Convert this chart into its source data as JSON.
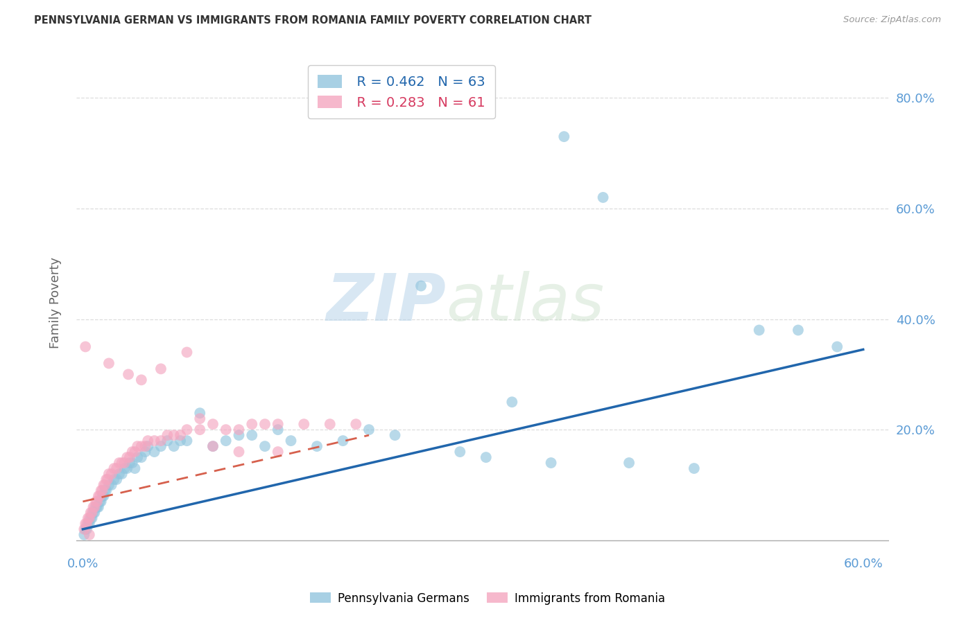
{
  "title": "PENNSYLVANIA GERMAN VS IMMIGRANTS FROM ROMANIA FAMILY POVERTY CORRELATION CHART",
  "source": "Source: ZipAtlas.com",
  "ylabel": "Family Poverty",
  "xlim": [
    -0.005,
    0.62
  ],
  "ylim": [
    -0.02,
    0.88
  ],
  "ytick_vals": [
    0.2,
    0.4,
    0.6,
    0.8
  ],
  "ytick_labels": [
    "20.0%",
    "40.0%",
    "60.0%",
    "80.0%"
  ],
  "xtick_vals": [
    0.0,
    0.6
  ],
  "xtick_labels": [
    "0.0%",
    "60.0%"
  ],
  "legend_blue_r": "R = 0.462",
  "legend_blue_n": "N = 63",
  "legend_pink_r": "R = 0.283",
  "legend_pink_n": "N = 61",
  "blue_color": "#92c5de",
  "pink_color": "#f4a6c0",
  "blue_line_color": "#2166ac",
  "pink_line_color": "#d6604d",
  "pink_line_dash": [
    6,
    4
  ],
  "watermark_zip": "ZIP",
  "watermark_atlas": "atlas",
  "grid_color": "#dddddd",
  "blue_x": [
    0.001,
    0.002,
    0.003,
    0.004,
    0.005,
    0.006,
    0.007,
    0.008,
    0.009,
    0.01,
    0.011,
    0.012,
    0.013,
    0.014,
    0.015,
    0.016,
    0.017,
    0.018,
    0.02,
    0.022,
    0.024,
    0.026,
    0.028,
    0.03,
    0.032,
    0.034,
    0.036,
    0.038,
    0.04,
    0.042,
    0.045,
    0.048,
    0.05,
    0.055,
    0.06,
    0.065,
    0.07,
    0.075,
    0.08,
    0.09,
    0.1,
    0.11,
    0.12,
    0.13,
    0.14,
    0.15,
    0.16,
    0.18,
    0.2,
    0.22,
    0.24,
    0.26,
    0.29,
    0.31,
    0.33,
    0.36,
    0.37,
    0.4,
    0.42,
    0.47,
    0.52,
    0.55,
    0.58
  ],
  "blue_y": [
    0.01,
    0.02,
    0.02,
    0.03,
    0.03,
    0.04,
    0.04,
    0.05,
    0.05,
    0.06,
    0.06,
    0.06,
    0.07,
    0.07,
    0.08,
    0.08,
    0.09,
    0.09,
    0.1,
    0.1,
    0.11,
    0.11,
    0.12,
    0.12,
    0.13,
    0.13,
    0.14,
    0.14,
    0.13,
    0.15,
    0.15,
    0.16,
    0.17,
    0.16,
    0.17,
    0.18,
    0.17,
    0.18,
    0.18,
    0.23,
    0.17,
    0.18,
    0.19,
    0.19,
    0.17,
    0.2,
    0.18,
    0.17,
    0.18,
    0.2,
    0.19,
    0.46,
    0.16,
    0.15,
    0.25,
    0.14,
    0.73,
    0.62,
    0.14,
    0.13,
    0.38,
    0.38,
    0.35
  ],
  "pink_x": [
    0.001,
    0.002,
    0.003,
    0.004,
    0.005,
    0.006,
    0.007,
    0.008,
    0.009,
    0.01,
    0.011,
    0.012,
    0.013,
    0.014,
    0.015,
    0.016,
    0.017,
    0.018,
    0.019,
    0.02,
    0.022,
    0.024,
    0.026,
    0.028,
    0.03,
    0.032,
    0.034,
    0.036,
    0.038,
    0.04,
    0.042,
    0.045,
    0.048,
    0.05,
    0.055,
    0.06,
    0.065,
    0.07,
    0.075,
    0.08,
    0.09,
    0.1,
    0.11,
    0.12,
    0.13,
    0.14,
    0.15,
    0.17,
    0.19,
    0.21,
    0.02,
    0.035,
    0.045,
    0.06,
    0.08,
    0.09,
    0.1,
    0.12,
    0.15,
    0.005,
    0.002
  ],
  "pink_y": [
    0.02,
    0.03,
    0.03,
    0.04,
    0.04,
    0.05,
    0.05,
    0.06,
    0.06,
    0.07,
    0.07,
    0.08,
    0.08,
    0.09,
    0.09,
    0.1,
    0.1,
    0.11,
    0.11,
    0.12,
    0.12,
    0.13,
    0.13,
    0.14,
    0.14,
    0.14,
    0.15,
    0.15,
    0.16,
    0.16,
    0.17,
    0.17,
    0.17,
    0.18,
    0.18,
    0.18,
    0.19,
    0.19,
    0.19,
    0.2,
    0.2,
    0.21,
    0.2,
    0.2,
    0.21,
    0.21,
    0.21,
    0.21,
    0.21,
    0.21,
    0.32,
    0.3,
    0.29,
    0.31,
    0.34,
    0.22,
    0.17,
    0.16,
    0.16,
    0.01,
    0.35
  ],
  "blue_line_x": [
    0.0,
    0.6
  ],
  "blue_line_y": [
    0.02,
    0.345
  ],
  "pink_line_x": [
    0.0,
    0.22
  ],
  "pink_line_y": [
    0.07,
    0.19
  ]
}
